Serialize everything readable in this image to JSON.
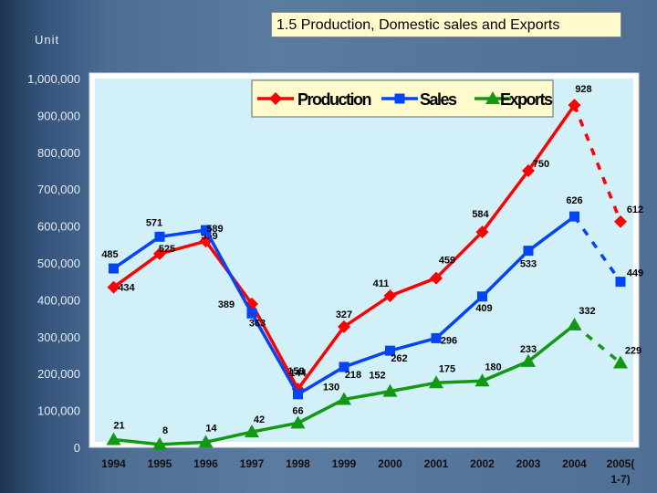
{
  "unit_label": "Unit",
  "title": "1.5 Production, Domestic sales and Exports",
  "chart_data": {
    "type": "line",
    "title": "1.5 Production, Domestic sales and Exports",
    "ylabel": "Unit",
    "ylim": [
      0,
      1000000
    ],
    "yticks": [
      {
        "value": 0,
        "label": "0"
      },
      {
        "value": 100000,
        "label": "100,000"
      },
      {
        "value": 200000,
        "label": "200,000"
      },
      {
        "value": 300000,
        "label": "300,000"
      },
      {
        "value": 400000,
        "label": "400,000"
      },
      {
        "value": 500000,
        "label": "500,000"
      },
      {
        "value": 600000,
        "label": "600,000"
      },
      {
        "value": 700000,
        "label": "700,000"
      },
      {
        "value": 800000,
        "label": "800,000"
      },
      {
        "value": 900000,
        "label": "900,000"
      },
      {
        "value": 1000000,
        "label": "1,000,000"
      }
    ],
    "categories": [
      "1994",
      "1995",
      "1996",
      "1997",
      "1998",
      "1999",
      "2000",
      "2001",
      "2002",
      "2003",
      "2004",
      "2005(1-7)"
    ],
    "grid": false,
    "legend_position": "top",
    "series": [
      {
        "name": "Production",
        "color": "#ff0000",
        "marker": "diamond",
        "values": [
          434000,
          525000,
          559000,
          389000,
          158000,
          327000,
          411000,
          459000,
          584000,
          750000,
          928000,
          612000
        ],
        "labels": [
          "434",
          "525",
          "559",
          "389",
          "158",
          "327",
          "411",
          "459",
          "584",
          "750",
          "928",
          "612"
        ],
        "last_segment_dashed": true
      },
      {
        "name": "Sales",
        "color": "#0044ff",
        "marker": "square",
        "values": [
          485000,
          571000,
          589000,
          363000,
          144000,
          218000,
          262000,
          296000,
          409000,
          533000,
          626000,
          449000
        ],
        "labels": [
          "485",
          "571",
          "589",
          "363",
          "144",
          "218",
          "262",
          "296",
          "409",
          "533",
          "626",
          "449"
        ],
        "last_segment_dashed": true
      },
      {
        "name": "Exports",
        "color": "#119911",
        "marker": "triangle",
        "values": [
          21000,
          8000,
          14000,
          42000,
          66000,
          130000,
          152000,
          175000,
          180000,
          233000,
          332000,
          229000
        ],
        "labels": [
          "21",
          "8",
          "14",
          "42",
          "66",
          "130",
          "152",
          "175",
          "180",
          "233",
          "332",
          "229"
        ],
        "last_segment_dashed": true
      }
    ]
  }
}
